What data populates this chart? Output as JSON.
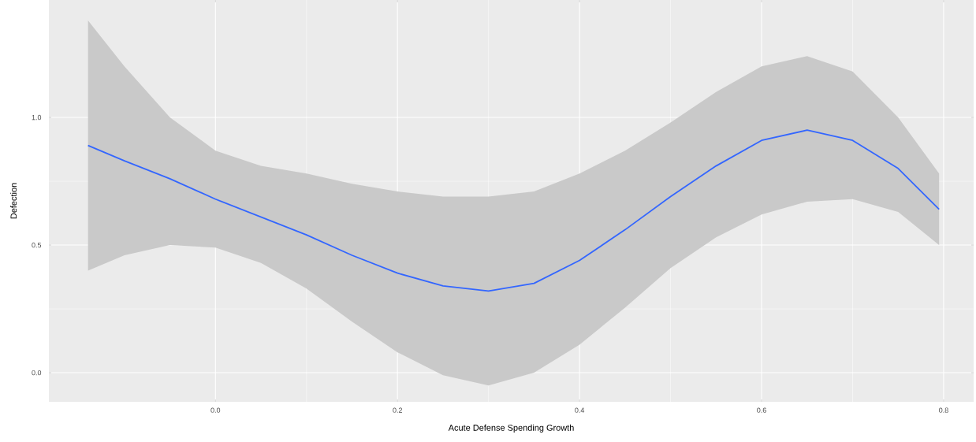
{
  "chart_data": {
    "type": "line",
    "xlabel": "Acute Defense Spending Growth",
    "ylabel": "Defection",
    "xlim": [
      -0.183,
      0.833
    ],
    "ylim": [
      -0.114,
      1.46
    ],
    "xticks": [
      {
        "value": 0,
        "label": "0.0"
      },
      0.2,
      0.4,
      0.6,
      0.8
    ],
    "yticks": [
      {
        "value": 0,
        "label": "0.0"
      },
      0.5,
      {
        "value": 1,
        "label": "1.0"
      }
    ],
    "grid": true,
    "series": [
      {
        "color": "#3366ff",
        "x": [
          -0.14,
          -0.1,
          -0.05,
          0,
          0.05,
          0.1,
          0.15,
          0.2,
          0.25,
          0.3,
          0.35,
          0.4,
          0.45,
          0.5,
          0.55,
          0.6,
          0.65,
          0.7,
          0.75,
          0.795
        ],
        "values": [
          0.89,
          0.83,
          0.76,
          0.68,
          0.61,
          0.54,
          0.46,
          0.39,
          0.34,
          0.32,
          0.35,
          0.44,
          0.56,
          0.69,
          0.81,
          0.91,
          0.95,
          0.91,
          0.8,
          0.64
        ],
        "upper": [
          1.38,
          1.2,
          1.0,
          0.87,
          0.81,
          0.78,
          0.74,
          0.71,
          0.69,
          0.69,
          0.71,
          0.78,
          0.87,
          0.98,
          1.1,
          1.2,
          1.24,
          1.18,
          1.0,
          0.78
        ],
        "lower": [
          0.4,
          0.46,
          0.5,
          0.49,
          0.43,
          0.33,
          0.2,
          0.08,
          -0.01,
          -0.05,
          0.0,
          0.11,
          0.255,
          0.41,
          0.53,
          0.62,
          0.67,
          0.68,
          0.63,
          0.5
        ]
      }
    ]
  }
}
